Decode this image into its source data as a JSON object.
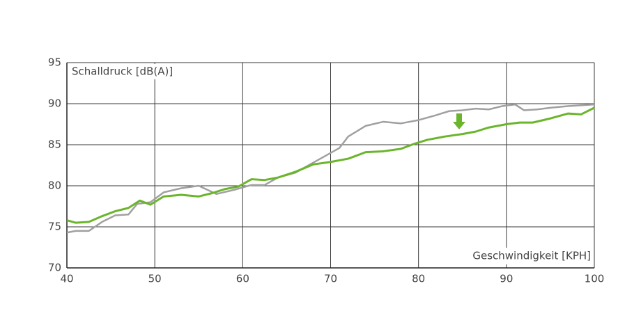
{
  "chart_data": {
    "type": "line",
    "y_label": "Schalldruck [dB(A)]",
    "x_label": "Geschwindigkeit [KPH]",
    "xlim": [
      40,
      100
    ],
    "ylim": [
      70,
      95
    ],
    "xticks": [
      40,
      50,
      60,
      70,
      80,
      90,
      100
    ],
    "yticks": [
      70,
      75,
      80,
      85,
      90,
      95
    ],
    "grid": true,
    "series": [
      {
        "color": "#a0a0a0",
        "x": [
          40,
          41,
          42.5,
          44,
          45.5,
          47,
          48,
          49.5,
          51,
          53,
          55,
          57,
          59,
          61,
          62.5,
          64,
          66,
          68,
          70,
          71,
          72,
          74,
          76,
          78,
          80,
          82,
          83.5,
          85,
          86.5,
          88,
          89.5,
          91,
          92,
          93.5,
          95,
          97,
          100
        ],
        "values": [
          74.3,
          74.5,
          74.5,
          75.6,
          76.4,
          76.5,
          77.8,
          78.0,
          79.2,
          79.7,
          80.0,
          79.0,
          79.5,
          80.1,
          80.1,
          81.0,
          81.6,
          82.8,
          84.0,
          84.6,
          86.0,
          87.3,
          87.8,
          87.6,
          88.0,
          88.6,
          89.1,
          89.2,
          89.4,
          89.3,
          89.7,
          89.9,
          89.2,
          89.3,
          89.5,
          89.7,
          89.9
        ]
      },
      {
        "color": "#6ab52c",
        "x": [
          40,
          41,
          42.5,
          44,
          45.5,
          47,
          48.3,
          49.5,
          51,
          53,
          55,
          56.5,
          58,
          59.5,
          61,
          62.5,
          64,
          66,
          68,
          70,
          72,
          74,
          76,
          78,
          79.5,
          81,
          83,
          85,
          86.5,
          88,
          90,
          91.5,
          93,
          95,
          97,
          98.5,
          100
        ],
        "values": [
          75.8,
          75.5,
          75.6,
          76.3,
          76.9,
          77.3,
          78.2,
          77.7,
          78.7,
          78.9,
          78.7,
          79.1,
          79.6,
          79.9,
          80.8,
          80.7,
          81.0,
          81.7,
          82.6,
          82.9,
          83.3,
          84.1,
          84.2,
          84.5,
          85.1,
          85.6,
          86.0,
          86.3,
          86.6,
          87.1,
          87.5,
          87.7,
          87.7,
          88.2,
          88.8,
          88.7,
          89.5
        ]
      }
    ]
  }
}
